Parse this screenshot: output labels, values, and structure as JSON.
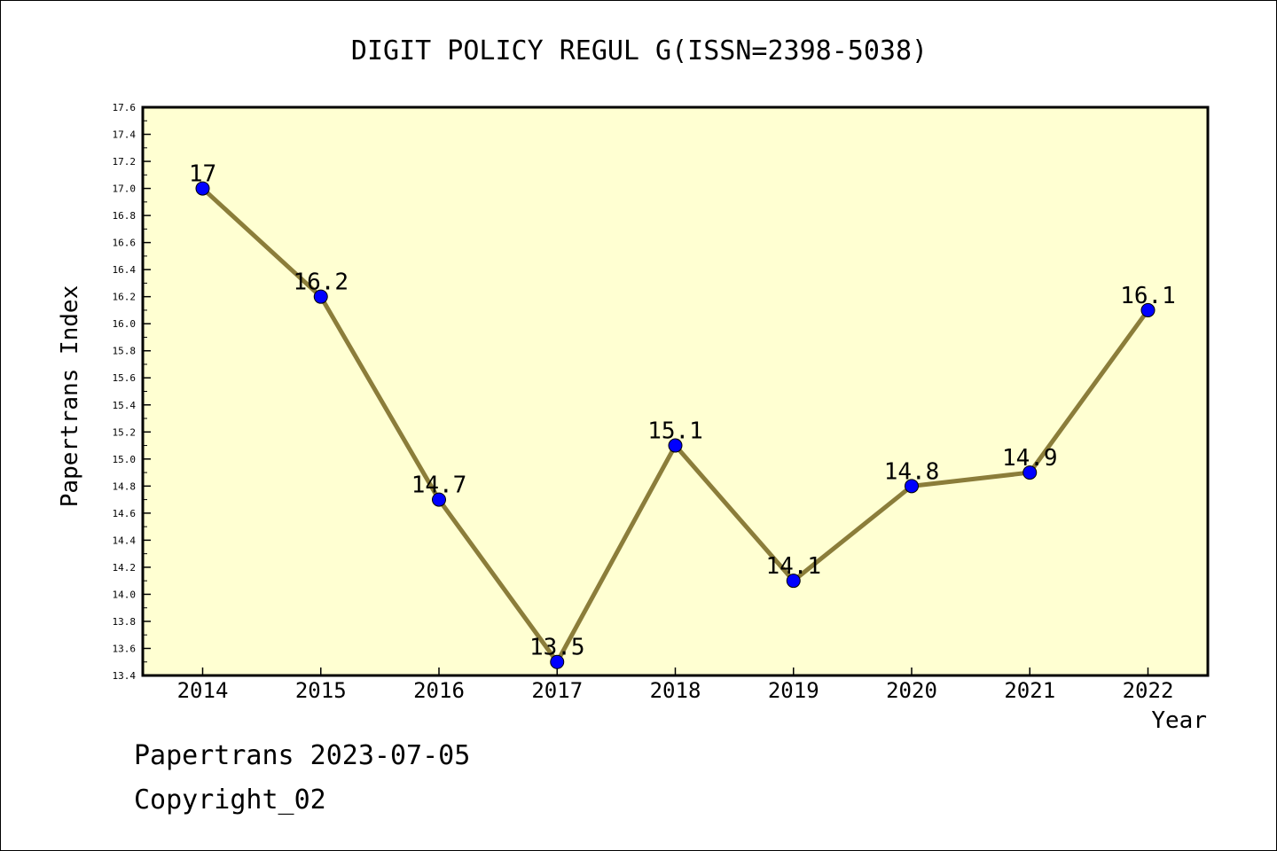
{
  "chart_data": {
    "type": "line",
    "title": "DIGIT POLICY REGUL G(ISSN=2398-5038)",
    "xlabel": "Year",
    "ylabel": "Papertrans Index",
    "categories": [
      "2014",
      "2015",
      "2016",
      "2017",
      "2018",
      "2019",
      "2020",
      "2021",
      "2022"
    ],
    "values": [
      17.0,
      16.2,
      14.7,
      13.5,
      15.1,
      14.1,
      14.8,
      14.9,
      16.1
    ],
    "data_labels": [
      "17",
      "16.2",
      "14.7",
      "13.5",
      "15.1",
      "14.1",
      "14.8",
      "14.9",
      "16.1"
    ],
    "ylim": [
      13.4,
      17.6
    ],
    "yticks": [
      "13.4",
      "13.6",
      "13.8",
      "14.0",
      "14.2",
      "14.4",
      "14.6",
      "14.8",
      "15.0",
      "15.2",
      "15.4",
      "15.6",
      "15.8",
      "16.0",
      "16.2",
      "16.4",
      "16.6",
      "16.8",
      "17.0",
      "17.2",
      "17.4",
      "17.6"
    ],
    "grid": false,
    "colors": {
      "plot_background": "#ffffd2",
      "line": "#8b7d3a",
      "marker": "#0000ff"
    }
  },
  "footer": {
    "date_text": "Papertrans 2023-07-05",
    "copyright_text": "Copyright_02"
  }
}
